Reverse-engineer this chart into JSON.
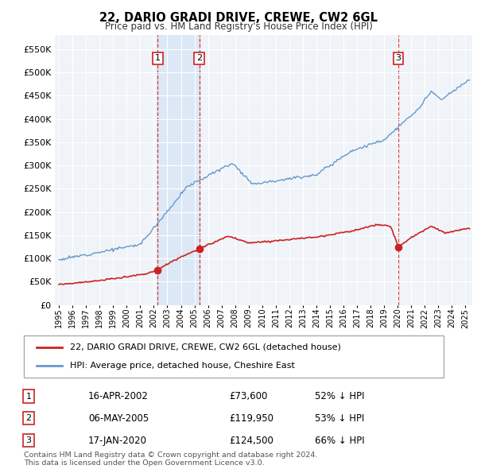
{
  "title": "22, DARIO GRADI DRIVE, CREWE, CW2 6GL",
  "subtitle": "Price paid vs. HM Land Registry's House Price Index (HPI)",
  "ylim": [
    0,
    580000
  ],
  "yticks": [
    0,
    50000,
    100000,
    150000,
    200000,
    250000,
    300000,
    350000,
    400000,
    450000,
    500000,
    550000
  ],
  "background_color": "#ffffff",
  "chart_bg": "#f0f4f8",
  "legend_entry1": "22, DARIO GRADI DRIVE, CREWE, CW2 6GL (detached house)",
  "legend_entry2": "HPI: Average price, detached house, Cheshire East",
  "transactions": [
    {
      "label": "1",
      "date": "16-APR-2002",
      "price": "£73,600",
      "pct": "52% ↓ HPI",
      "x_year": 2002.29,
      "y_val": 73600
    },
    {
      "label": "2",
      "date": "06-MAY-2005",
      "price": "£119,950",
      "pct": "53% ↓ HPI",
      "x_year": 2005.35,
      "y_val": 119950
    },
    {
      "label": "3",
      "date": "17-JAN-2020",
      "price": "£124,500",
      "pct": "66% ↓ HPI",
      "x_year": 2020.05,
      "y_val": 124500
    }
  ],
  "footnote1": "Contains HM Land Registry data © Crown copyright and database right 2024.",
  "footnote2": "This data is licensed under the Open Government Licence v3.0.",
  "red_line_color": "#cc2222",
  "blue_line_color": "#6699cc",
  "shade_color": "#dce8f5",
  "vline_color": "#cc2222",
  "xlim_left": 1994.7,
  "xlim_right": 2025.5
}
